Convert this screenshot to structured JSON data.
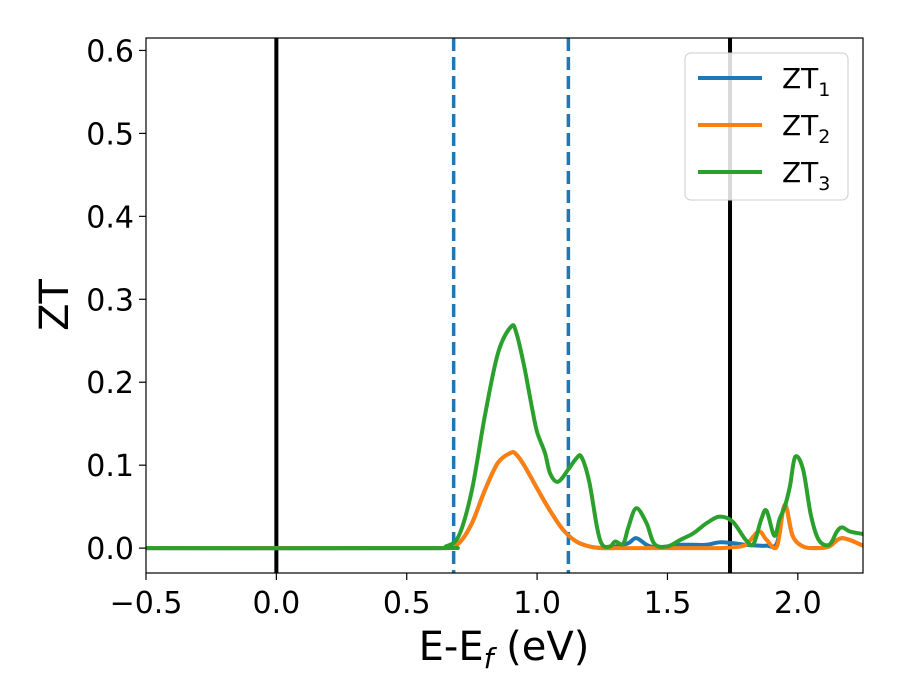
{
  "chart_data": {
    "type": "line",
    "xlabel": "E-E",
    "xlabel_sub": "f",
    "xlabel_unit": " (eV)",
    "ylabel": "ZT",
    "xlim": [
      -0.5,
      2.25
    ],
    "ylim": [
      -0.03,
      0.615
    ],
    "x_ticks": [
      -0.5,
      0.0,
      0.5,
      1.0,
      1.5,
      2.0
    ],
    "x_tick_labels": [
      "−0.5",
      "0.0",
      "0.5",
      "1.0",
      "1.5",
      "2.0"
    ],
    "y_ticks": [
      0.0,
      0.1,
      0.2,
      0.3,
      0.4,
      0.5,
      0.6
    ],
    "y_tick_labels": [
      "0.0",
      "0.1",
      "0.2",
      "0.3",
      "0.4",
      "0.5",
      "0.6"
    ],
    "grid": false,
    "legend_placement": "top-right",
    "vlines": [
      {
        "x": 0.0,
        "style": "solid",
        "color": "#000000"
      },
      {
        "x": 1.74,
        "style": "solid",
        "color": "#000000"
      },
      {
        "x": 0.68,
        "style": "dashed",
        "color": "#1f77b4"
      },
      {
        "x": 1.12,
        "style": "dashed",
        "color": "#1f77b4"
      }
    ],
    "series": [
      {
        "name": "ZT",
        "sub": "1",
        "color": "#1f77b4",
        "x": [
          -0.5,
          0.6,
          0.65,
          0.7,
          0.75,
          0.8,
          0.85,
          0.9,
          0.92,
          0.95,
          1.0,
          1.05,
          1.1,
          1.15,
          1.2,
          1.25,
          1.3,
          1.35,
          1.38,
          1.42,
          1.45,
          1.5,
          1.55,
          1.6,
          1.65,
          1.7,
          1.75,
          1.8,
          1.85,
          1.88,
          1.92,
          1.95,
          1.98,
          2.02,
          2.07,
          2.12,
          2.17,
          2.25
        ],
        "y": [
          0.0,
          0.0,
          0.001,
          0.006,
          0.03,
          0.07,
          0.103,
          0.115,
          0.113,
          0.1,
          0.072,
          0.045,
          0.022,
          0.008,
          0.002,
          0.0,
          0.002,
          0.006,
          0.012,
          0.004,
          0.001,
          0.002,
          0.004,
          0.004,
          0.004,
          0.007,
          0.006,
          0.004,
          0.003,
          0.003,
          0.006,
          0.052,
          0.015,
          0.002,
          0.0,
          0.002,
          0.012,
          0.003
        ]
      },
      {
        "name": "ZT",
        "sub": "2",
        "color": "#ff7f0e",
        "x": [
          -0.5,
          0.6,
          0.65,
          0.7,
          0.75,
          0.8,
          0.85,
          0.9,
          0.92,
          0.95,
          1.0,
          1.05,
          1.1,
          1.15,
          1.2,
          1.25,
          1.3,
          1.4,
          1.5,
          1.6,
          1.7,
          1.75,
          1.8,
          1.85,
          1.88,
          1.92,
          1.95,
          1.98,
          2.02,
          2.07,
          2.12,
          2.17,
          2.25
        ],
        "y": [
          0.0,
          0.0,
          0.001,
          0.006,
          0.03,
          0.07,
          0.103,
          0.115,
          0.113,
          0.1,
          0.072,
          0.045,
          0.022,
          0.008,
          0.002,
          0.0,
          0.0,
          0.0,
          0.0,
          0.0,
          0.0,
          0.001,
          0.004,
          0.02,
          0.01,
          0.002,
          0.052,
          0.015,
          0.002,
          0.0,
          0.002,
          0.012,
          0.003
        ]
      },
      {
        "name": "ZT",
        "sub": "3",
        "color": "#2ca02c",
        "x": [
          -0.5,
          0.6,
          0.65,
          0.7,
          0.75,
          0.8,
          0.85,
          0.9,
          0.92,
          0.95,
          0.98,
          1.0,
          1.03,
          1.05,
          1.08,
          1.12,
          1.15,
          1.17,
          1.2,
          1.23,
          1.25,
          1.28,
          1.3,
          1.33,
          1.35,
          1.38,
          1.42,
          1.45,
          1.5,
          1.55,
          1.6,
          1.65,
          1.7,
          1.75,
          1.8,
          1.83,
          1.86,
          1.88,
          1.91,
          1.93,
          1.95,
          1.97,
          1.99,
          2.02,
          2.05,
          2.08,
          2.12,
          2.15,
          2.17,
          2.2,
          2.25
        ],
        "y": [
          0.0,
          0.0,
          0.002,
          0.015,
          0.07,
          0.16,
          0.235,
          0.267,
          0.26,
          0.22,
          0.17,
          0.14,
          0.115,
          0.09,
          0.08,
          0.095,
          0.108,
          0.11,
          0.08,
          0.025,
          0.004,
          0.002,
          0.008,
          0.005,
          0.025,
          0.048,
          0.03,
          0.005,
          0.002,
          0.01,
          0.018,
          0.03,
          0.038,
          0.032,
          0.01,
          0.005,
          0.035,
          0.045,
          0.015,
          0.035,
          0.05,
          0.075,
          0.11,
          0.095,
          0.04,
          0.01,
          0.004,
          0.02,
          0.025,
          0.02,
          0.017
        ]
      }
    ]
  }
}
